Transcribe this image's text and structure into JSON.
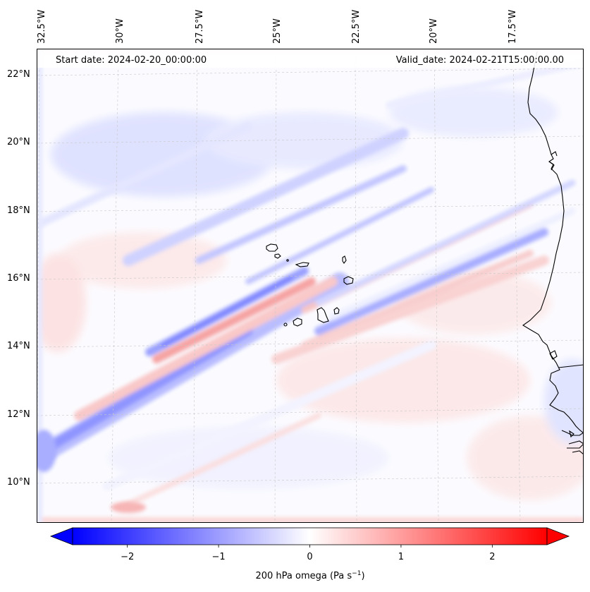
{
  "map": {
    "start_date": "Start date: 2024-02-20_00:00:00",
    "valid_date": "Valid_date: 2024-02-21T15:00:00.00",
    "lon_ticks": [
      "32.5°W",
      "30°W",
      "27.5°W",
      "25°W",
      "22.5°W",
      "20°W",
      "17.5°W"
    ],
    "lat_ticks": [
      "22°N",
      "20°N",
      "18°N",
      "16°N",
      "14°N",
      "12°N",
      "10°N"
    ],
    "region": "Cape Verde and West African coast",
    "field": "200 hPa omega"
  },
  "colorbar": {
    "label": "200 hPa omega (Pa s",
    "label_superscript": "−1",
    "label_close": ")",
    "ticks": [
      "−2",
      "−1",
      "0",
      "1",
      "2"
    ],
    "tick_values": [
      -2,
      -1,
      0,
      1,
      2
    ],
    "range": [
      -2.6,
      2.6
    ],
    "colormap": "bwr",
    "low_color": "#0000ff",
    "mid_color": "#ffffff",
    "high_color": "#ff0000"
  }
}
